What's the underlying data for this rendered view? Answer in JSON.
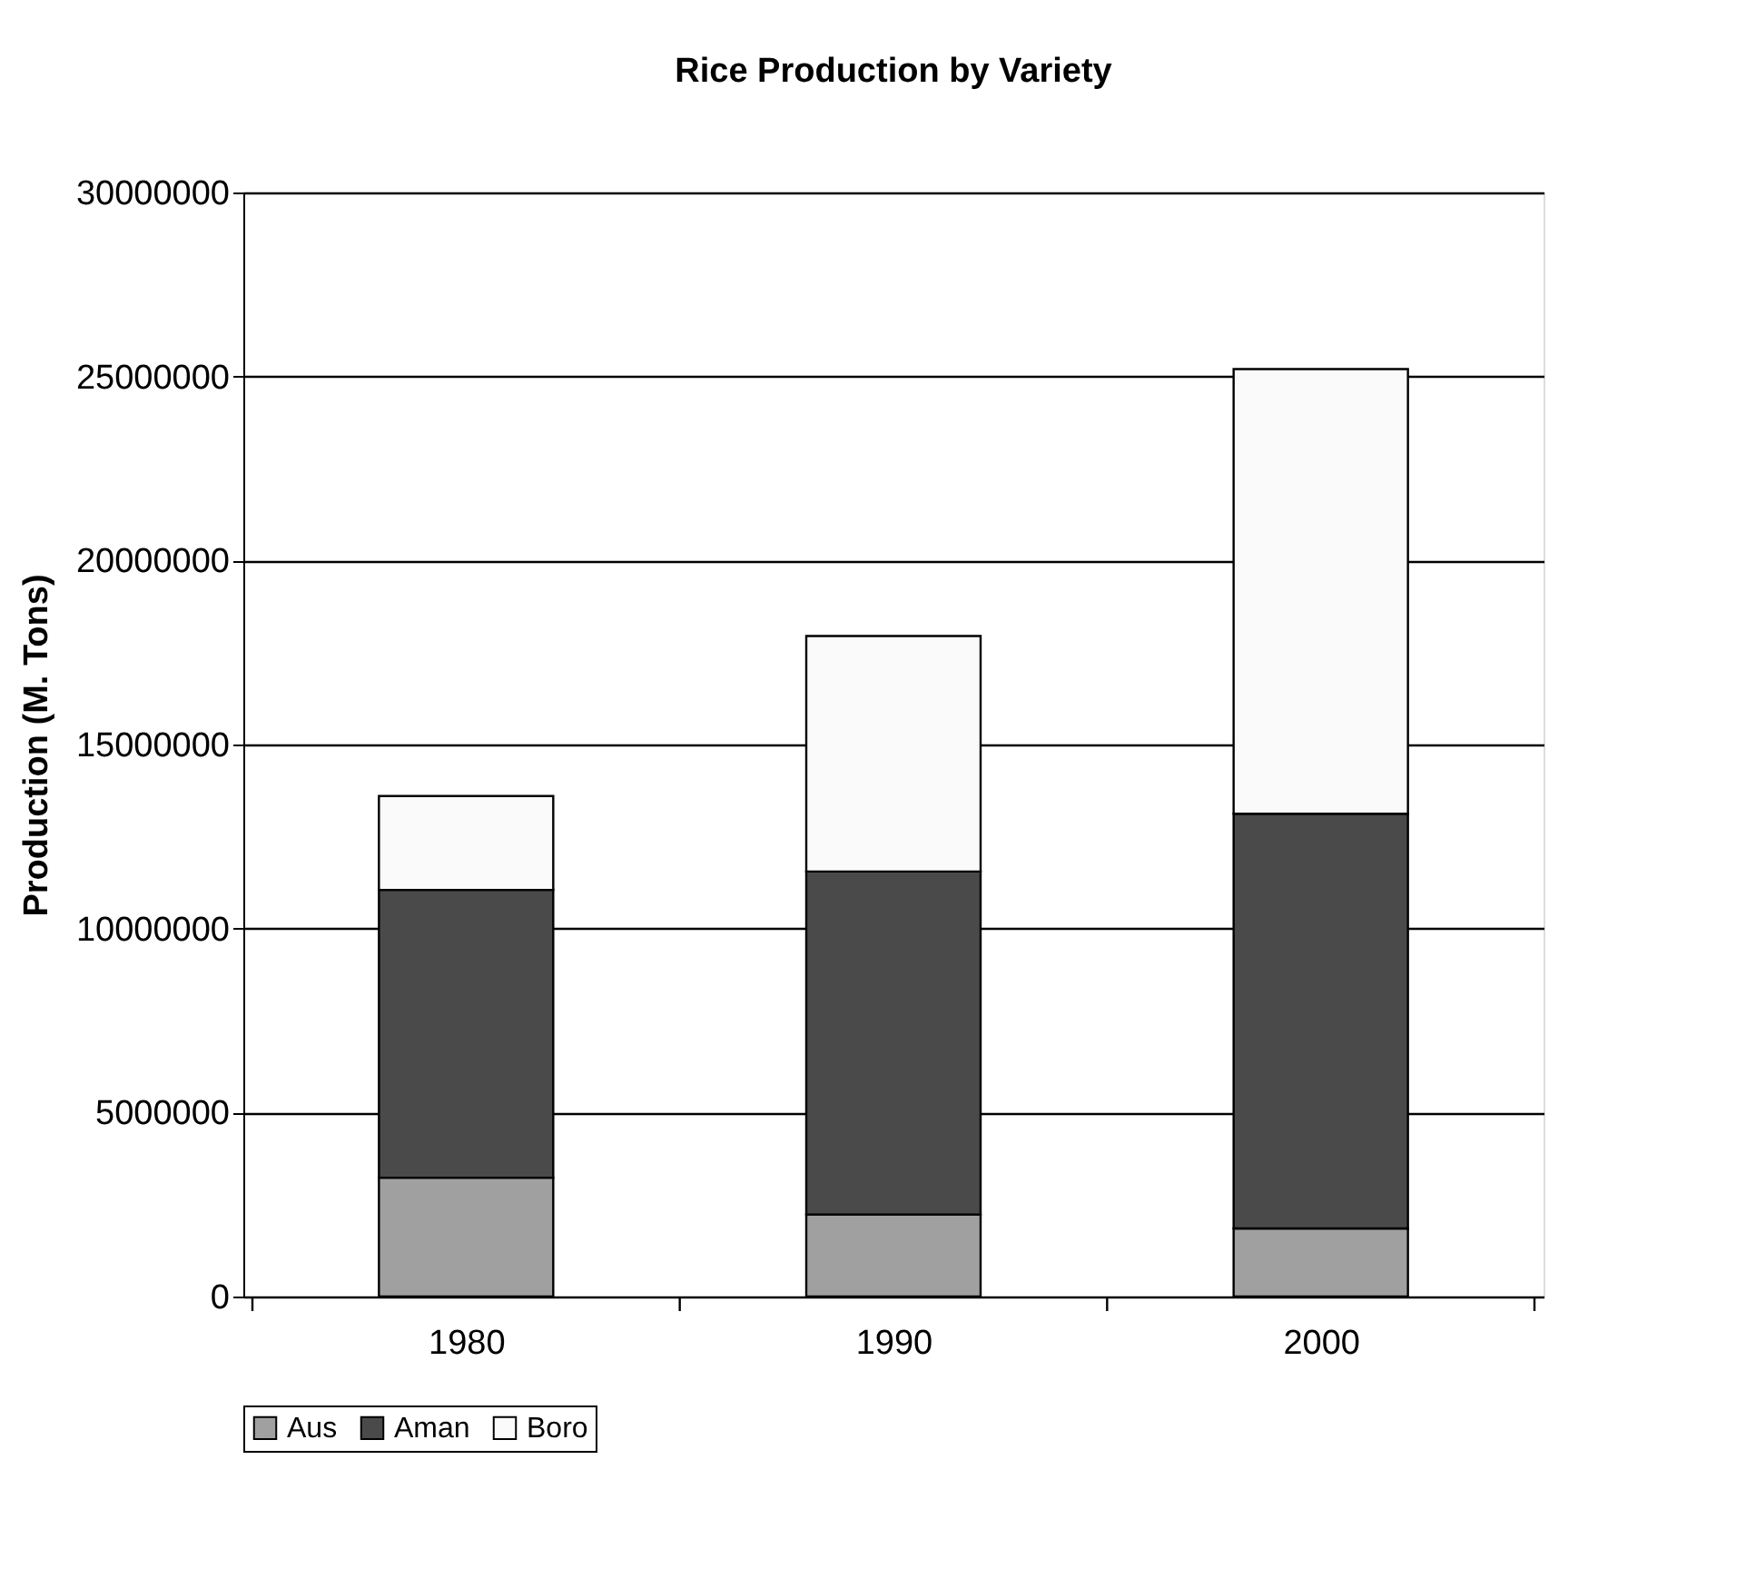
{
  "chart_data": {
    "type": "bar",
    "title": "Rice Production by Variety",
    "ylabel": "Production (M. Tons)",
    "categories": [
      "1980",
      "1990",
      "2000"
    ],
    "series": [
      {
        "name": "Aus",
        "color": "#a0a0a0",
        "values": [
          3230000,
          2230000,
          1850000
        ]
      },
      {
        "name": "Aman",
        "color": "#4a4a4a",
        "values": [
          7820000,
          9320000,
          11270000
        ]
      },
      {
        "name": "Boro",
        "color": "#fafafa",
        "values": [
          2550000,
          6400000,
          12080000
        ]
      }
    ],
    "stacked": true,
    "ylim": [
      0,
      30000000
    ],
    "yticks": [
      0,
      5000000,
      10000000,
      15000000,
      20000000,
      25000000,
      30000000
    ],
    "grid": "y",
    "legend": "bottom"
  }
}
